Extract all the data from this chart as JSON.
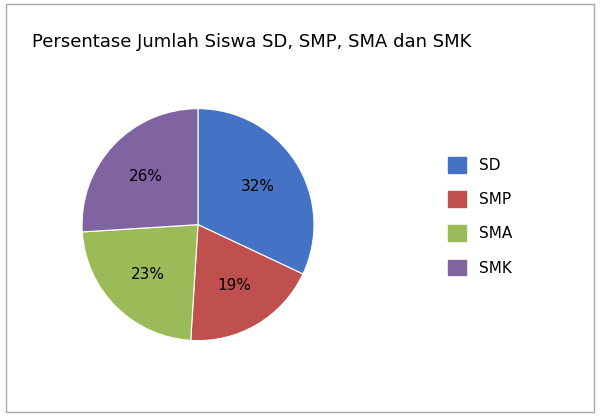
{
  "title": "Persentase Jumlah Siswa SD, SMP, SMA dan SMK",
  "labels": [
    "SD",
    "SMP",
    "SMA",
    "SMK"
  ],
  "values": [
    32,
    19,
    23,
    26
  ],
  "colors": [
    "#4472C4",
    "#C0504D",
    "#9BBB59",
    "#8064A2"
  ],
  "pct_labels": [
    "32%",
    "19%",
    "23%",
    "26%"
  ],
  "background_color": "#FFFFFF",
  "title_fontsize": 13,
  "label_fontsize": 11,
  "legend_fontsize": 11,
  "startangle": 90
}
